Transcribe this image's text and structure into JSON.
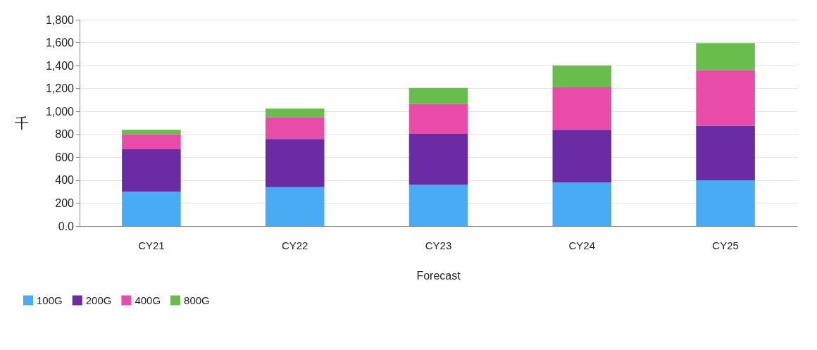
{
  "chart_data": {
    "type": "bar",
    "stacked": true,
    "xlabel": "Forecast",
    "ylabel": "千",
    "categories": [
      "CY21",
      "CY22",
      "CY23",
      "CY24",
      "CY25"
    ],
    "series": [
      {
        "name": "100G",
        "color": "#4aabf5",
        "values": [
          300,
          340,
          360,
          380,
          400
        ]
      },
      {
        "name": "200G",
        "color": "#6b2ba5",
        "values": [
          370,
          420,
          445,
          460,
          475
        ]
      },
      {
        "name": "400G",
        "color": "#e94ca8",
        "values": [
          130,
          190,
          260,
          370,
          485
        ]
      },
      {
        "name": "800G",
        "color": "#69bd4d",
        "values": [
          40,
          75,
          140,
          190,
          235
        ]
      }
    ],
    "ylim": [
      0,
      1800
    ],
    "yticks": [
      {
        "value": 0,
        "label": "0.0"
      },
      200,
      400,
      600,
      800,
      {
        "value": 1000,
        "label": "1,000"
      },
      {
        "value": 1200,
        "label": "1,200"
      },
      {
        "value": 1400,
        "label": "1,400"
      },
      {
        "value": 1600,
        "label": "1,600"
      },
      {
        "value": 1800,
        "label": "1,800"
      }
    ],
    "grid": "y",
    "legend": "bottom left"
  }
}
